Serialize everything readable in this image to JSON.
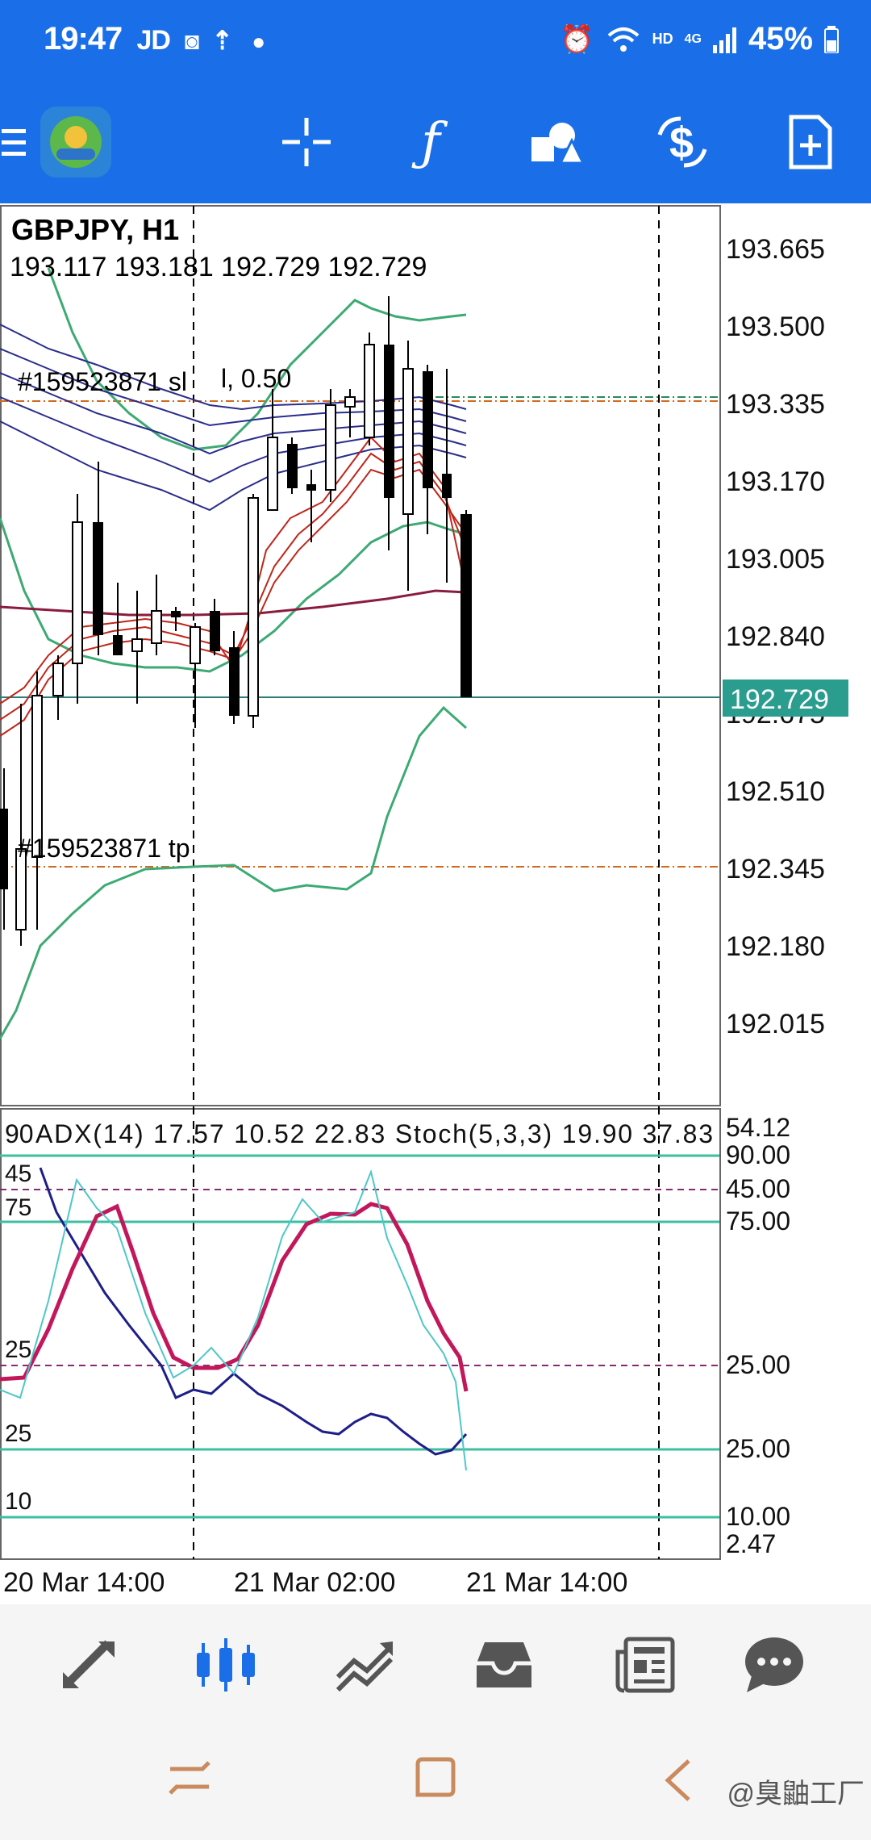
{
  "status_bar": {
    "time": "19:47",
    "carrier": "JD",
    "battery": "45%",
    "network": "HD",
    "network_gen": "4G"
  },
  "toolbar": {
    "icons": [
      "menu-icon",
      "app-logo-icon",
      "crosshair-icon",
      "function-icon",
      "objects-icon",
      "trade-icon",
      "new-order-icon"
    ],
    "color": "#1a6fe8"
  },
  "chart": {
    "symbol_tf": "GBPJPY, H1",
    "ohlc": "193.117 193.181 192.729 192.729",
    "sl_label": "#159523871 sl",
    "sl_extra": "l, 0.50",
    "tp_label": "#159523871 tp",
    "current_price": "192.729",
    "price_labels": [
      "193.665",
      "193.500",
      "193.335",
      "193.170",
      "193.005",
      "192.840",
      "192.675",
      "192.510",
      "192.345",
      "192.180",
      "192.015"
    ],
    "time_labels": [
      "20 Mar 14:00",
      "21 Mar 02:00",
      "21 Mar 14:00"
    ]
  },
  "indicator": {
    "header": "ADX(14) 17.57 10.52 22.83 Stoch(5,3,3) 19.90 37.83",
    "header_prefix": "90",
    "right_labels": [
      "54.12",
      "90.00",
      "45.00",
      "75.00",
      "25.00",
      "25.00",
      "10.00",
      "2.47"
    ],
    "left_labels": [
      "45",
      "75",
      "25",
      "25",
      "10"
    ]
  },
  "bottom_nav": {
    "items": [
      "quotes-icon",
      "chart-icon",
      "trade-icon",
      "history-icon",
      "news-icon",
      "chat-icon"
    ]
  },
  "watermark": "@臭鼬工厂"
}
